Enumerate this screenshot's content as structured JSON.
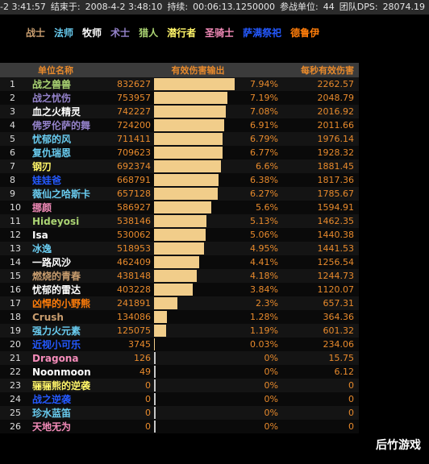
{
  "topbar": {
    "start": "-2 3:41:57",
    "end_label": "结束于:",
    "end": "2008-4-2 3:48:10",
    "duration_label": "持续:",
    "duration": "00:06:13.1250000",
    "units_label": "参战单位:",
    "units": "44",
    "team_dps_label": "团队DPS:",
    "team_dps": "28074.19"
  },
  "class_filters": [
    {
      "label": "战士",
      "color": "#c79c6e"
    },
    {
      "label": "法师",
      "color": "#69ccf0"
    },
    {
      "label": "牧师",
      "color": "#ffffff"
    },
    {
      "label": "术士",
      "color": "#9482ca"
    },
    {
      "label": "猎人",
      "color": "#abd473"
    },
    {
      "label": "潜行者",
      "color": "#fff569"
    },
    {
      "label": "圣骑士",
      "color": "#f58cba"
    },
    {
      "label": "萨满祭祀",
      "color": "#2459ff"
    },
    {
      "label": "德鲁伊",
      "color": "#ff7d0a"
    }
  ],
  "table": {
    "headers": {
      "name": "单位名称",
      "damage": "有效伤害输出",
      "dps": "每秒有效伤害"
    },
    "rows": [
      {
        "rank": "1",
        "name": "战之兽兽",
        "color": "#abd473",
        "damage": "832627",
        "fraction": 1.0,
        "pct": "7.94%",
        "dps": "2262.57"
      },
      {
        "rank": "2",
        "name": "战之忧伤",
        "color": "#9482ca",
        "damage": "753957",
        "fraction": 0.905,
        "pct": "7.19%",
        "dps": "2048.79"
      },
      {
        "rank": "3",
        "name": "血之火精灵",
        "color": "#ffffff",
        "damage": "742227",
        "fraction": 0.891,
        "pct": "7.08%",
        "dps": "2016.92"
      },
      {
        "rank": "4",
        "name": "佛罗伦萨的舞",
        "color": "#9482ca",
        "damage": "724200",
        "fraction": 0.87,
        "pct": "6.91%",
        "dps": "2011.66"
      },
      {
        "rank": "5",
        "name": "忧郁的风",
        "color": "#69ccf0",
        "damage": "711411",
        "fraction": 0.854,
        "pct": "6.79%",
        "dps": "1976.14"
      },
      {
        "rank": "6",
        "name": "复仇瑞恩",
        "color": "#69ccf0",
        "damage": "709623",
        "fraction": 0.852,
        "pct": "6.77%",
        "dps": "1928.32"
      },
      {
        "rank": "7",
        "name": "钢刃",
        "color": "#fff569",
        "damage": "692374",
        "fraction": 0.832,
        "pct": "6.6%",
        "dps": "1881.45"
      },
      {
        "rank": "8",
        "name": "娃娃爸",
        "color": "#2459ff",
        "damage": "668791",
        "fraction": 0.803,
        "pct": "6.38%",
        "dps": "1817.36"
      },
      {
        "rank": "9",
        "name": "薇仙之哈斯卡",
        "color": "#69ccf0",
        "damage": "657128",
        "fraction": 0.789,
        "pct": "6.27%",
        "dps": "1785.67"
      },
      {
        "rank": "10",
        "name": "挪颜",
        "color": "#f58cba",
        "damage": "586927",
        "fraction": 0.705,
        "pct": "5.6%",
        "dps": "1594.91"
      },
      {
        "rank": "11",
        "name": "Hideyosi",
        "color": "#abd473",
        "damage": "538146",
        "fraction": 0.646,
        "pct": "5.13%",
        "dps": "1462.35"
      },
      {
        "rank": "12",
        "name": "Isa",
        "color": "#ffffff",
        "damage": "530062",
        "fraction": 0.637,
        "pct": "5.06%",
        "dps": "1440.38"
      },
      {
        "rank": "13",
        "name": "冰逸",
        "color": "#69ccf0",
        "damage": "518953",
        "fraction": 0.623,
        "pct": "4.95%",
        "dps": "1441.53"
      },
      {
        "rank": "14",
        "name": "一路风沙",
        "color": "#ffffff",
        "damage": "462409",
        "fraction": 0.555,
        "pct": "4.41%",
        "dps": "1256.54"
      },
      {
        "rank": "15",
        "name": "燃烧的青春",
        "color": "#c79c6e",
        "damage": "438148",
        "fraction": 0.526,
        "pct": "4.18%",
        "dps": "1244.73"
      },
      {
        "rank": "16",
        "name": "忧郁的雷达",
        "color": "#ffffff",
        "damage": "403228",
        "fraction": 0.484,
        "pct": "3.84%",
        "dps": "1120.07"
      },
      {
        "rank": "17",
        "name": "凶悍的小野熊",
        "color": "#ff7d0a",
        "damage": "241891",
        "fraction": 0.29,
        "pct": "2.3%",
        "dps": "657.31"
      },
      {
        "rank": "18",
        "name": "Crush",
        "color": "#c79c6e",
        "damage": "134086",
        "fraction": 0.161,
        "pct": "1.28%",
        "dps": "364.36"
      },
      {
        "rank": "19",
        "name": "强力火元素",
        "color": "#69ccf0",
        "damage": "125075",
        "fraction": 0.15,
        "pct": "1.19%",
        "dps": "601.32"
      },
      {
        "rank": "20",
        "name": "近视小可乐",
        "color": "#2459ff",
        "damage": "3745",
        "fraction": 0.005,
        "pct": "0.03%",
        "dps": "234.06"
      },
      {
        "rank": "21",
        "name": "Dragona",
        "color": "#f58cba",
        "damage": "126",
        "fraction": 0.0,
        "pct": "0%",
        "dps": "15.75"
      },
      {
        "rank": "22",
        "name": "Noonmoon",
        "color": "#ffffff",
        "damage": "49",
        "fraction": 0.0,
        "pct": "0%",
        "dps": "6.12"
      },
      {
        "rank": "23",
        "name": "骊骊熊的逆袭",
        "color": "#fff569",
        "damage": "0",
        "fraction": 0.0,
        "pct": "0%",
        "dps": "0"
      },
      {
        "rank": "24",
        "name": "战之逆袭",
        "color": "#2459ff",
        "damage": "0",
        "fraction": 0.0,
        "pct": "0%",
        "dps": "0"
      },
      {
        "rank": "25",
        "name": "珍水蓝笛",
        "color": "#69ccf0",
        "damage": "0",
        "fraction": 0.0,
        "pct": "0%",
        "dps": "0"
      },
      {
        "rank": "26",
        "name": "天地无为",
        "color": "#f58cba",
        "damage": "0",
        "fraction": 0.0,
        "pct": "0%",
        "dps": "0"
      }
    ]
  },
  "watermark": "后竹游戏"
}
